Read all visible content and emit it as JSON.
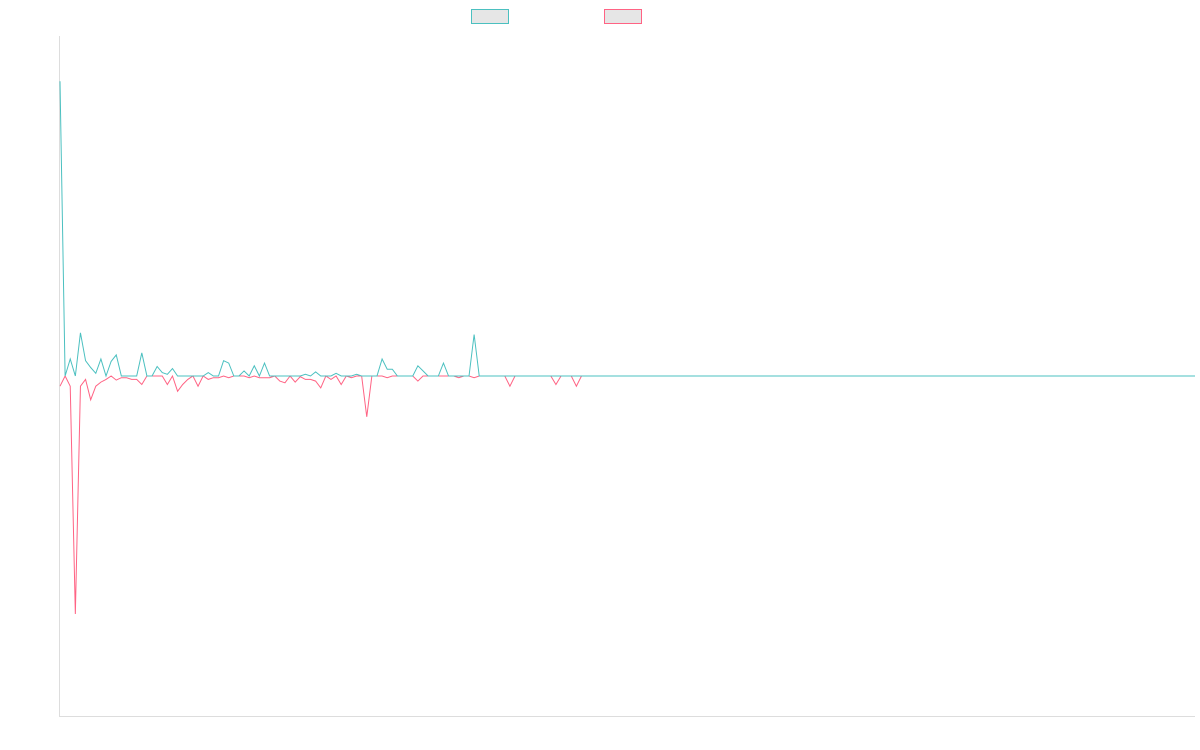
{
  "chart_data": {
    "type": "line",
    "title": "",
    "xlabel": "",
    "ylabel": "",
    "grid": false,
    "legend_position": "top-center",
    "x_count": 223,
    "ylim": [
      -1.0,
      1.0
    ],
    "series": [
      {
        "color": "#4bc0c0",
        "values": [
          0.867,
          0.0,
          0.05,
          0.0,
          0.127,
          0.045,
          0.025,
          0.008,
          0.05,
          0.0,
          0.043,
          0.062,
          0.0,
          0.0,
          0.0,
          0.0,
          0.068,
          0.0,
          0.0,
          0.028,
          0.01,
          0.005,
          0.022,
          0.0,
          0.0,
          0.0,
          0.0,
          0.0,
          0.0,
          0.01,
          0.0,
          0.0,
          0.045,
          0.038,
          0.0,
          0.0,
          0.015,
          0.0,
          0.03,
          0.0,
          0.038,
          0.0,
          0.0,
          0.0,
          0.0,
          0.0,
          0.0,
          0.0,
          0.005,
          0.0,
          0.012,
          0.0,
          0.0,
          0.0,
          0.008,
          0.0,
          0.0,
          0.0,
          0.005,
          0.0,
          0.0,
          0.0,
          0.0,
          0.05,
          0.02,
          0.02,
          0.0,
          0.0,
          0.0,
          0.0,
          0.03,
          0.015,
          0.0,
          0.0,
          0.0,
          0.038,
          0.0,
          0.0,
          0.0,
          0.0,
          0.0,
          0.122,
          0.0,
          0.0,
          0.0,
          0.0,
          0.0,
          0.0,
          0.0,
          0.0,
          0.0,
          0.0,
          0.0,
          0.0,
          0.0,
          0.0,
          0.0,
          0.0,
          0.0,
          0.0,
          0.0,
          0.0,
          0.0,
          0.0,
          0.0,
          0.0,
          0.0,
          0.0,
          0.0,
          0.0,
          0.0,
          0.0,
          0.0,
          0.0,
          0.0,
          0.0,
          0.0,
          0.0,
          0.0,
          0.0,
          0.0,
          0.0,
          0.0,
          0.0,
          0.0,
          0.0,
          0.0,
          0.0,
          0.0,
          0.0,
          0.0,
          0.0,
          0.0,
          0.0,
          0.0,
          0.0,
          0.0,
          0.0,
          0.0,
          0.0,
          0.0,
          0.0,
          0.0,
          0.0,
          0.0,
          0.0,
          0.0,
          0.0,
          0.0,
          0.0,
          0.0,
          0.0,
          0.0,
          0.0,
          0.0,
          0.0,
          0.0,
          0.0,
          0.0,
          0.0,
          0.0,
          0.0,
          0.0,
          0.0,
          0.0,
          0.0,
          0.0,
          0.0,
          0.0,
          0.0,
          0.0,
          0.0,
          0.0,
          0.0,
          0.0,
          0.0,
          0.0,
          0.0,
          0.0,
          0.0,
          0.0,
          0.0,
          0.0,
          0.0,
          0.0,
          0.0,
          0.0,
          0.0,
          0.0,
          0.0,
          0.0,
          0.0,
          0.0,
          0.0,
          0.0,
          0.0,
          0.0,
          0.0,
          0.0,
          0.0,
          0.0,
          0.0,
          0.0,
          0.0,
          0.0,
          0.0,
          0.0,
          0.0,
          0.0,
          0.0,
          0.0,
          0.0,
          0.0,
          0.0,
          0.0,
          0.0,
          0.0,
          0.0,
          0.0,
          0.0,
          0.0,
          0.0,
          0.0
        ]
      },
      {
        "color": "#ff6384",
        "values": [
          -0.03,
          0.0,
          -0.03,
          -0.7,
          -0.03,
          -0.01,
          -0.07,
          -0.03,
          -0.018,
          -0.01,
          0.0,
          -0.012,
          -0.005,
          -0.005,
          -0.01,
          -0.01,
          -0.025,
          0.0,
          0.0,
          0.0,
          0.0,
          -0.025,
          0.0,
          -0.045,
          -0.025,
          -0.01,
          0.0,
          -0.03,
          0.0,
          -0.01,
          -0.005,
          -0.005,
          0.0,
          -0.005,
          0.0,
          0.0,
          0.0,
          -0.005,
          0.0,
          -0.005,
          -0.005,
          -0.005,
          0.0,
          -0.015,
          -0.02,
          0.0,
          -0.018,
          -0.002,
          -0.01,
          -0.01,
          -0.015,
          -0.035,
          0.0,
          -0.01,
          0.0,
          -0.025,
          0.0,
          -0.005,
          0.0,
          0.0,
          -0.12,
          0.0,
          0.0,
          0.0,
          -0.005,
          0.0,
          0.0,
          0.0,
          0.0,
          0.0,
          -0.015,
          0.0,
          0.0,
          0.0,
          0.0,
          0.0,
          0.0,
          0.0,
          -0.005,
          0.0,
          0.0,
          -0.005,
          0.0,
          0.0,
          0.0,
          0.0,
          0.0,
          0.0,
          -0.03,
          0.0,
          0.0,
          0.0,
          0.0,
          0.0,
          0.0,
          0.0,
          0.0,
          -0.025,
          0.0,
          0.0,
          0.0,
          -0.03,
          0.0,
          0.0,
          0.0,
          0.0,
          0.0,
          0.0,
          0.0,
          0.0,
          0.0,
          0.0,
          0.0,
          0.0,
          0.0,
          0.0,
          0.0,
          0.0,
          0.0,
          0.0,
          0.0,
          0.0,
          0.0,
          0.0,
          0.0,
          0.0,
          0.0,
          0.0,
          0.0,
          0.0,
          0.0,
          0.0,
          0.0,
          0.0,
          0.0,
          0.0,
          0.0,
          0.0,
          0.0,
          0.0,
          0.0,
          0.0,
          0.0,
          0.0,
          0.0,
          0.0,
          0.0,
          0.0,
          0.0,
          0.0,
          0.0,
          0.0,
          0.0,
          0.0,
          0.0,
          0.0,
          0.0,
          0.0,
          0.0,
          0.0,
          0.0,
          0.0,
          0.0,
          0.0,
          0.0,
          0.0,
          0.0,
          0.0,
          0.0,
          0.0,
          0.0,
          0.0,
          0.0,
          0.0,
          0.0,
          0.0,
          0.0,
          0.0,
          0.0,
          0.0,
          0.0,
          0.0,
          0.0,
          0.0,
          0.0,
          0.0,
          0.0,
          0.0,
          0.0,
          0.0,
          0.0,
          0.0,
          0.0,
          0.0,
          0.0,
          0.0,
          0.0,
          0.0,
          0.0,
          0.0,
          0.0,
          0.0,
          0.0,
          0.0,
          0.0,
          0.0,
          0.0,
          0.0,
          0.0,
          0.0,
          0.0,
          0.0,
          0.0,
          0.0,
          0.0,
          0.0,
          0.0,
          0.0,
          0.0,
          0.0,
          0.0,
          0.0,
          0.0
        ]
      }
    ]
  }
}
